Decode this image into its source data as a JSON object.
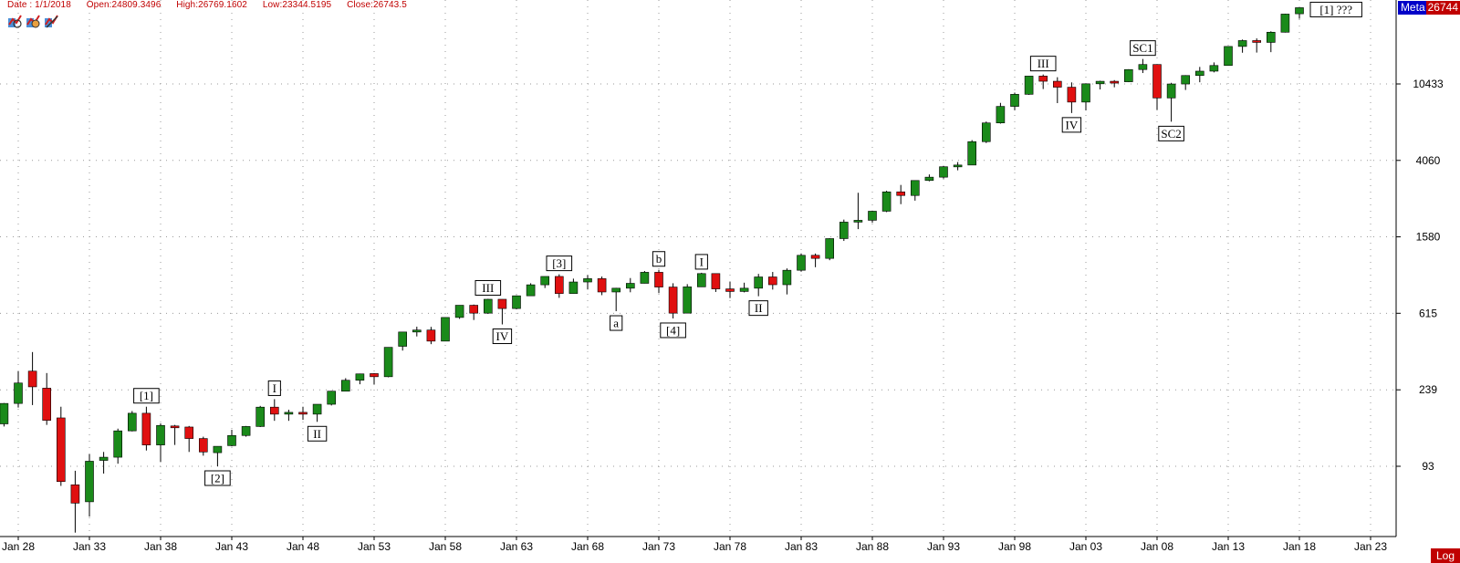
{
  "info": {
    "date": "Date : 1/1/2018",
    "open": "Open:24809.3496",
    "high": "High:26769.1602",
    "low": "Low:23344.5195",
    "close": "Close:26743.5"
  },
  "toolbar_icons": [
    "chart-tool-icon-1",
    "chart-tool-icon-2",
    "chart-tool-icon-3"
  ],
  "badge": {
    "meta": "Meta",
    "value": "26744"
  },
  "scale_button": "Log",
  "colors": {
    "up": "#1a8a1a",
    "down": "#e01010",
    "grid": "#9a9a9a",
    "badge_red": "#c00000",
    "badge_blue": "#0000c8"
  },
  "chart_data": {
    "type": "candlestick",
    "y_scale": "log",
    "y_ticks": [
      93,
      239,
      615,
      1580,
      4060,
      10433
    ],
    "y_tick_labels": [
      "93",
      "239",
      "615",
      "1580",
      "4060",
      "10433"
    ],
    "x_tick_labels": [
      "Jan 28",
      "Jan 33",
      "Jan 38",
      "Jan 43",
      "Jan 48",
      "Jan 53",
      "Jan 58",
      "Jan 63",
      "Jan 68",
      "Jan 73",
      "Jan 78",
      "Jan 83",
      "Jan 88",
      "Jan 93",
      "Jan 98",
      "Jan 03",
      "Jan 08",
      "Jan 13",
      "Jan 18",
      "Jan 23"
    ],
    "x_tick_years": [
      1928,
      1933,
      1938,
      1943,
      1948,
      1953,
      1958,
      1963,
      1968,
      1973,
      1978,
      1983,
      1988,
      1993,
      1998,
      2003,
      2008,
      2013,
      2018,
      2023
    ],
    "candles": [
      {
        "year": 1927,
        "open": 157,
        "high": 203,
        "low": 152,
        "close": 202
      },
      {
        "year": 1928,
        "open": 202,
        "high": 300,
        "low": 192,
        "close": 260
      },
      {
        "year": 1929,
        "open": 301,
        "high": 381,
        "low": 198,
        "close": 248
      },
      {
        "year": 1930,
        "open": 244,
        "high": 294,
        "low": 155,
        "close": 164
      },
      {
        "year": 1931,
        "open": 169,
        "high": 194,
        "low": 73,
        "close": 77
      },
      {
        "year": 1932,
        "open": 74,
        "high": 88,
        "low": 41,
        "close": 59
      },
      {
        "year": 1933,
        "open": 60,
        "high": 108,
        "low": 50,
        "close": 99
      },
      {
        "year": 1934,
        "open": 100,
        "high": 111,
        "low": 85,
        "close": 104
      },
      {
        "year": 1935,
        "open": 104,
        "high": 148,
        "low": 96,
        "close": 144
      },
      {
        "year": 1936,
        "open": 144,
        "high": 184,
        "low": 143,
        "close": 179
      },
      {
        "year": 1937,
        "open": 179,
        "high": 194,
        "low": 113,
        "close": 121
      },
      {
        "year": 1938,
        "open": 121,
        "high": 158,
        "low": 98,
        "close": 154
      },
      {
        "year": 1939,
        "open": 153,
        "high": 155,
        "low": 121,
        "close": 150
      },
      {
        "year": 1940,
        "open": 151,
        "high": 153,
        "low": 111,
        "close": 131
      },
      {
        "year": 1941,
        "open": 131,
        "high": 134,
        "low": 106,
        "close": 111
      },
      {
        "year": 1942,
        "open": 110,
        "high": 119,
        "low": 93,
        "close": 119
      },
      {
        "year": 1943,
        "open": 120,
        "high": 146,
        "low": 119,
        "close": 136
      },
      {
        "year": 1944,
        "open": 136,
        "high": 153,
        "low": 134,
        "close": 152
      },
      {
        "year": 1945,
        "open": 152,
        "high": 196,
        "low": 151,
        "close": 193
      },
      {
        "year": 1946,
        "open": 193,
        "high": 213,
        "low": 163,
        "close": 177
      },
      {
        "year": 1947,
        "open": 177,
        "high": 187,
        "low": 163,
        "close": 181
      },
      {
        "year": 1948,
        "open": 181,
        "high": 194,
        "low": 165,
        "close": 177
      },
      {
        "year": 1949,
        "open": 177,
        "high": 200,
        "low": 161,
        "close": 200
      },
      {
        "year": 1950,
        "open": 200,
        "high": 236,
        "low": 197,
        "close": 235
      },
      {
        "year": 1951,
        "open": 235,
        "high": 276,
        "low": 239,
        "close": 269
      },
      {
        "year": 1952,
        "open": 269,
        "high": 292,
        "low": 256,
        "close": 291
      },
      {
        "year": 1953,
        "open": 292,
        "high": 294,
        "low": 255,
        "close": 281
      },
      {
        "year": 1954,
        "open": 281,
        "high": 404,
        "low": 279,
        "close": 404
      },
      {
        "year": 1955,
        "open": 409,
        "high": 488,
        "low": 388,
        "close": 488
      },
      {
        "year": 1956,
        "open": 488,
        "high": 521,
        "low": 462,
        "close": 500
      },
      {
        "year": 1957,
        "open": 500,
        "high": 520,
        "low": 420,
        "close": 436
      },
      {
        "year": 1958,
        "open": 436,
        "high": 584,
        "low": 436,
        "close": 584
      },
      {
        "year": 1959,
        "open": 584,
        "high": 679,
        "low": 574,
        "close": 679
      },
      {
        "year": 1960,
        "open": 679,
        "high": 685,
        "low": 566,
        "close": 616
      },
      {
        "year": 1961,
        "open": 616,
        "high": 735,
        "low": 610,
        "close": 731
      },
      {
        "year": 1962,
        "open": 731,
        "high": 726,
        "low": 536,
        "close": 652
      },
      {
        "year": 1963,
        "open": 652,
        "high": 767,
        "low": 646,
        "close": 763
      },
      {
        "year": 1964,
        "open": 763,
        "high": 891,
        "low": 766,
        "close": 874
      },
      {
        "year": 1965,
        "open": 874,
        "high": 969,
        "low": 840,
        "close": 969
      },
      {
        "year": 1966,
        "open": 969,
        "high": 995,
        "low": 744,
        "close": 785
      },
      {
        "year": 1967,
        "open": 785,
        "high": 943,
        "low": 786,
        "close": 905
      },
      {
        "year": 1968,
        "open": 905,
        "high": 985,
        "low": 825,
        "close": 943
      },
      {
        "year": 1969,
        "open": 943,
        "high": 968,
        "low": 769,
        "close": 800
      },
      {
        "year": 1970,
        "open": 800,
        "high": 842,
        "low": 631,
        "close": 838
      },
      {
        "year": 1971,
        "open": 838,
        "high": 950,
        "low": 797,
        "close": 890
      },
      {
        "year": 1972,
        "open": 890,
        "high": 1036,
        "low": 889,
        "close": 1020
      },
      {
        "year": 1973,
        "open": 1020,
        "high": 1051,
        "low": 788,
        "close": 850
      },
      {
        "year": 1974,
        "open": 850,
        "high": 891,
        "low": 577,
        "close": 616
      },
      {
        "year": 1975,
        "open": 616,
        "high": 881,
        "low": 632,
        "close": 852
      },
      {
        "year": 1976,
        "open": 852,
        "high": 1014,
        "low": 858,
        "close": 1004
      },
      {
        "year": 1977,
        "open": 1004,
        "high": 999,
        "low": 800,
        "close": 831
      },
      {
        "year": 1978,
        "open": 831,
        "high": 907,
        "low": 742,
        "close": 805
      },
      {
        "year": 1979,
        "open": 805,
        "high": 897,
        "low": 796,
        "close": 838
      },
      {
        "year": 1980,
        "open": 838,
        "high": 1000,
        "low": 759,
        "close": 963
      },
      {
        "year": 1981,
        "open": 963,
        "high": 1024,
        "low": 824,
        "close": 875
      },
      {
        "year": 1982,
        "open": 875,
        "high": 1070,
        "low": 776,
        "close": 1046
      },
      {
        "year": 1983,
        "open": 1046,
        "high": 1287,
        "low": 1027,
        "close": 1258
      },
      {
        "year": 1984,
        "open": 1258,
        "high": 1286,
        "low": 1086,
        "close": 1211
      },
      {
        "year": 1985,
        "open": 1211,
        "high": 1553,
        "low": 1184,
        "close": 1546
      },
      {
        "year": 1986,
        "open": 1546,
        "high": 1955,
        "low": 1502,
        "close": 1895
      },
      {
        "year": 1987,
        "open": 1895,
        "high": 2722,
        "low": 1738,
        "close": 1938
      },
      {
        "year": 1988,
        "open": 1938,
        "high": 2183,
        "low": 1879,
        "close": 2168
      },
      {
        "year": 1989,
        "open": 2168,
        "high": 2791,
        "low": 2144,
        "close": 2753
      },
      {
        "year": 1990,
        "open": 2753,
        "high": 2999,
        "low": 2365,
        "close": 2633
      },
      {
        "year": 1991,
        "open": 2633,
        "high": 3168,
        "low": 2470,
        "close": 3168
      },
      {
        "year": 1992,
        "open": 3168,
        "high": 3413,
        "low": 3136,
        "close": 3301
      },
      {
        "year": 1993,
        "open": 3301,
        "high": 3794,
        "low": 3241,
        "close": 3754
      },
      {
        "year": 1994,
        "open": 3754,
        "high": 3978,
        "low": 3593,
        "close": 3834
      },
      {
        "year": 1995,
        "open": 3834,
        "high": 5216,
        "low": 3832,
        "close": 5117
      },
      {
        "year": 1996,
        "open": 5117,
        "high": 6560,
        "low": 5032,
        "close": 6448
      },
      {
        "year": 1997,
        "open": 6448,
        "high": 8259,
        "low": 6391,
        "close": 7908
      },
      {
        "year": 1998,
        "open": 7908,
        "high": 9374,
        "low": 7539,
        "close": 9181
      },
      {
        "year": 1999,
        "open": 9181,
        "high": 11497,
        "low": 9120,
        "close": 11497
      },
      {
        "year": 2000,
        "open": 11497,
        "high": 11723,
        "low": 9796,
        "close": 10787
      },
      {
        "year": 2001,
        "open": 10787,
        "high": 11337,
        "low": 8235,
        "close": 10021
      },
      {
        "year": 2002,
        "open": 10021,
        "high": 10635,
        "low": 7286,
        "close": 8341
      },
      {
        "year": 2003,
        "open": 8341,
        "high": 10454,
        "low": 7524,
        "close": 10453
      },
      {
        "year": 2004,
        "open": 10453,
        "high": 10854,
        "low": 9749,
        "close": 10783
      },
      {
        "year": 2005,
        "open": 10783,
        "high": 10940,
        "low": 10012,
        "close": 10717
      },
      {
        "year": 2006,
        "open": 10717,
        "high": 12510,
        "low": 10667,
        "close": 12463
      },
      {
        "year": 2007,
        "open": 12463,
        "high": 14198,
        "low": 11939,
        "close": 13264
      },
      {
        "year": 2008,
        "open": 13264,
        "high": 13058,
        "low": 7552,
        "close": 8776
      },
      {
        "year": 2009,
        "open": 8776,
        "high": 10580,
        "low": 6547,
        "close": 10428
      },
      {
        "year": 2010,
        "open": 10428,
        "high": 11625,
        "low": 9686,
        "close": 11578
      },
      {
        "year": 2011,
        "open": 11578,
        "high": 12876,
        "low": 10655,
        "close": 12218
      },
      {
        "year": 2012,
        "open": 12218,
        "high": 13610,
        "low": 12035,
        "close": 13104
      },
      {
        "year": 2013,
        "open": 13104,
        "high": 16577,
        "low": 13104,
        "close": 16577
      },
      {
        "year": 2014,
        "open": 16577,
        "high": 18054,
        "low": 15340,
        "close": 17823
      },
      {
        "year": 2015,
        "open": 17823,
        "high": 18312,
        "low": 15370,
        "close": 17425
      },
      {
        "year": 2016,
        "open": 17425,
        "high": 19987,
        "low": 15450,
        "close": 19763
      },
      {
        "year": 2017,
        "open": 19763,
        "high": 24838,
        "low": 19677,
        "close": 24719
      },
      {
        "year": 2018,
        "open": 24809.3496,
        "high": 26769.1602,
        "low": 23344.5195,
        "close": 26743.5
      }
    ],
    "annotations": [
      {
        "text": "[1]",
        "year": 1937,
        "anchor": "high"
      },
      {
        "text": "[2]",
        "year": 1942,
        "anchor": "low"
      },
      {
        "text": "I",
        "year": 1946,
        "anchor": "high"
      },
      {
        "text": "II",
        "year": 1949,
        "anchor": "low"
      },
      {
        "text": "III",
        "year": 1961,
        "anchor": "high"
      },
      {
        "text": "IV",
        "year": 1962,
        "anchor": "low"
      },
      {
        "text": "[3]",
        "year": 1966,
        "anchor": "high"
      },
      {
        "text": "a",
        "year": 1970,
        "anchor": "low"
      },
      {
        "text": "b",
        "year": 1973,
        "anchor": "high"
      },
      {
        "text": "[4]",
        "year": 1974,
        "anchor": "low"
      },
      {
        "text": "I",
        "year": 1976,
        "anchor": "high"
      },
      {
        "text": "II",
        "year": 1980,
        "anchor": "low"
      },
      {
        "text": "III",
        "year": 2000,
        "anchor": "high"
      },
      {
        "text": "IV",
        "year": 2002,
        "anchor": "low"
      },
      {
        "text": "SC1",
        "year": 2007,
        "anchor": "high"
      },
      {
        "text": "SC2",
        "year": 2009,
        "anchor": "low"
      },
      {
        "text": "[1] ???",
        "year": 2018,
        "anchor": "right"
      }
    ]
  }
}
